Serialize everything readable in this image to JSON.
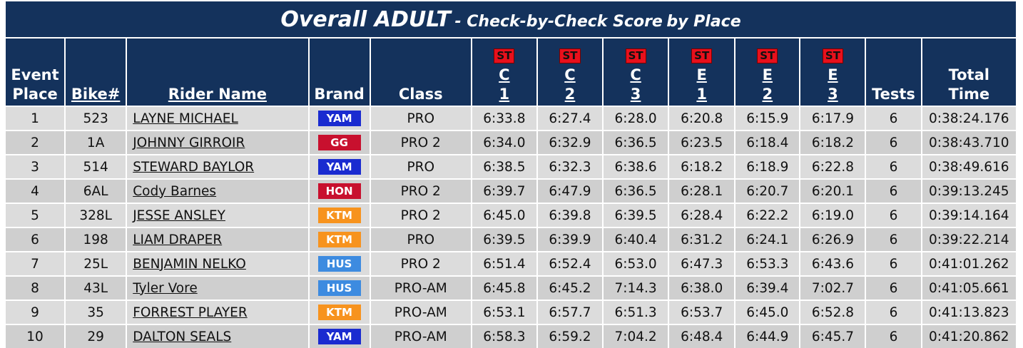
{
  "header": {
    "title_main": "Overall ADULT",
    "title_sub": "- Check-by-Check Score",
    "title_tail": "by Place"
  },
  "columns": [
    {
      "label": [
        "Event",
        "Place"
      ]
    },
    {
      "label": [
        "Bike#"
      ],
      "link": true
    },
    {
      "label": [
        "Rider Name"
      ],
      "link": true
    },
    {
      "label": [
        "Brand"
      ]
    },
    {
      "label": [
        "Class"
      ]
    },
    {
      "badge": "ST",
      "label": [
        "C",
        "1"
      ],
      "link": true
    },
    {
      "badge": "ST",
      "label": [
        "C",
        "2"
      ],
      "link": true
    },
    {
      "badge": "ST",
      "label": [
        "C",
        "3"
      ],
      "link": true
    },
    {
      "badge": "ST",
      "label": [
        "E",
        "1"
      ],
      "link": true
    },
    {
      "badge": "ST",
      "label": [
        "E",
        "2"
      ],
      "link": true
    },
    {
      "badge": "ST",
      "label": [
        "E",
        "3"
      ],
      "link": true
    },
    {
      "label": [
        "Tests"
      ]
    },
    {
      "label": [
        "Total",
        "Time"
      ]
    }
  ],
  "brand_colors": {
    "YAM": "#1a2bd0",
    "GG": "#c8102e",
    "HON": "#c8102e",
    "KTM": "#f7931e",
    "HUS": "#3d8be0"
  },
  "rows": [
    [
      "1",
      "523",
      "LAYNE MICHAEL",
      "YAM",
      "PRO",
      "6:33.8",
      "6:27.4",
      "6:28.0",
      "6:20.8",
      "6:15.9",
      "6:17.9",
      "6",
      "0:38:24.176"
    ],
    [
      "2",
      "1A",
      "JOHNNY GIRROIR",
      "GG",
      "PRO 2",
      "6:34.0",
      "6:32.9",
      "6:36.5",
      "6:23.5",
      "6:18.4",
      "6:18.2",
      "6",
      "0:38:43.710"
    ],
    [
      "3",
      "514",
      "STEWARD BAYLOR",
      "YAM",
      "PRO",
      "6:38.5",
      "6:32.3",
      "6:38.6",
      "6:18.2",
      "6:18.9",
      "6:22.8",
      "6",
      "0:38:49.616"
    ],
    [
      "4",
      "6AL",
      "Cody Barnes",
      "HON",
      "PRO 2",
      "6:39.7",
      "6:47.9",
      "6:36.5",
      "6:28.1",
      "6:20.7",
      "6:20.1",
      "6",
      "0:39:13.245"
    ],
    [
      "5",
      "328L",
      "JESSE ANSLEY",
      "KTM",
      "PRO 2",
      "6:45.0",
      "6:39.8",
      "6:39.5",
      "6:28.4",
      "6:22.2",
      "6:19.0",
      "6",
      "0:39:14.164"
    ],
    [
      "6",
      "198",
      "LIAM DRAPER",
      "KTM",
      "PRO",
      "6:39.5",
      "6:39.9",
      "6:40.4",
      "6:31.2",
      "6:24.1",
      "6:26.9",
      "6",
      "0:39:22.214"
    ],
    [
      "7",
      "25L",
      "BENJAMIN NELKO",
      "HUS",
      "PRO 2",
      "6:51.4",
      "6:52.4",
      "6:53.0",
      "6:47.3",
      "6:53.3",
      "6:43.6",
      "6",
      "0:41:01.262"
    ],
    [
      "8",
      "43L",
      "Tyler Vore",
      "HUS",
      "PRO-AM",
      "6:45.8",
      "6:45.2",
      "7:14.3",
      "6:38.0",
      "6:39.4",
      "7:02.7",
      "6",
      "0:41:05.661"
    ],
    [
      "9",
      "35",
      "FORREST PLAYER",
      "KTM",
      "PRO-AM",
      "6:53.1",
      "6:57.7",
      "6:51.3",
      "6:53.7",
      "6:45.0",
      "6:52.8",
      "6",
      "0:41:13.823"
    ],
    [
      "10",
      "29",
      "DALTON SEALS",
      "YAM",
      "PRO-AM",
      "6:58.3",
      "6:59.2",
      "7:04.2",
      "6:48.4",
      "6:44.9",
      "6:45.7",
      "6",
      "0:41:20.862"
    ]
  ]
}
